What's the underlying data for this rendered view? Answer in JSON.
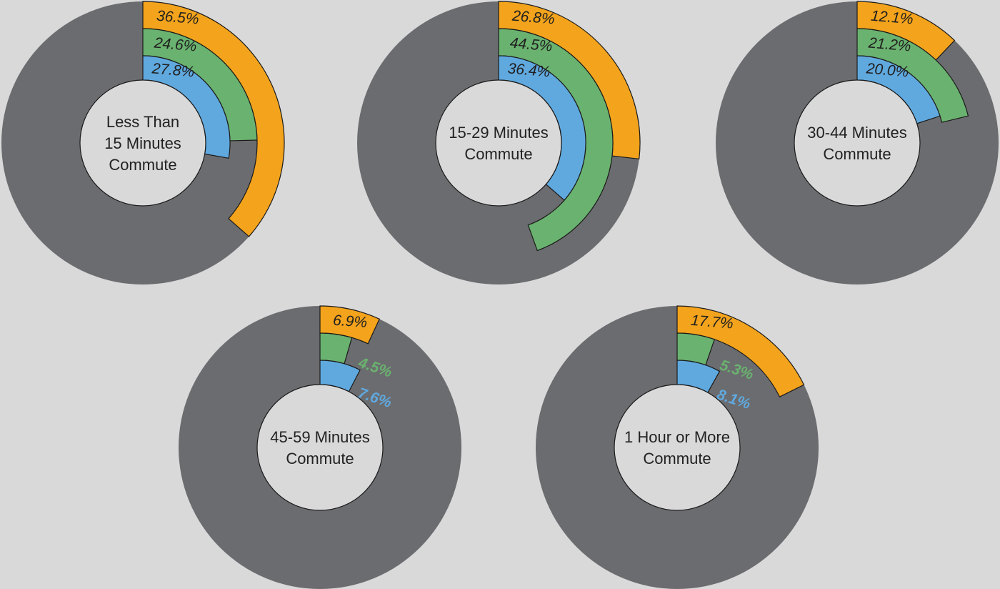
{
  "colors": {
    "background": "#d9d9d9",
    "ring_base": "#6b6c6f",
    "center_fill": "#d9d9d9",
    "series_orange": "#f3a31c",
    "series_green": "#6ab26f",
    "series_blue": "#60a9df",
    "outline": "#1a1a1a",
    "inside_label": "#1f1f1f"
  },
  "chart_data": [
    {
      "type": "radial-bar",
      "center_label": [
        "Less Than",
        "15 Minutes",
        "Commute"
      ],
      "series": [
        {
          "value": 36.5,
          "label": "36.5%",
          "color": "#f3a31c"
        },
        {
          "value": 24.6,
          "label": "24.6%",
          "color": "#6ab26f"
        },
        {
          "value": 27.8,
          "label": "27.8%",
          "color": "#60a9df"
        }
      ],
      "unit": "%",
      "max": 100
    },
    {
      "type": "radial-bar",
      "center_label": [
        "15-29 Minutes",
        "Commute"
      ],
      "series": [
        {
          "value": 26.8,
          "label": "26.8%",
          "color": "#f3a31c"
        },
        {
          "value": 44.5,
          "label": "44.5%",
          "color": "#6ab26f"
        },
        {
          "value": 36.4,
          "label": "36.4%",
          "color": "#60a9df"
        }
      ],
      "unit": "%",
      "max": 100
    },
    {
      "type": "radial-bar",
      "center_label": [
        "30-44 Minutes",
        "Commute"
      ],
      "series": [
        {
          "value": 12.1,
          "label": "12.1%",
          "color": "#f3a31c"
        },
        {
          "value": 21.2,
          "label": "21.2%",
          "color": "#6ab26f"
        },
        {
          "value": 20.0,
          "label": "20.0%",
          "color": "#60a9df"
        }
      ],
      "unit": "%",
      "max": 100
    },
    {
      "type": "radial-bar",
      "center_label": [
        "45-59 Minutes",
        "Commute"
      ],
      "series": [
        {
          "value": 6.9,
          "label": "6.9%",
          "color": "#f3a31c"
        },
        {
          "value": 4.5,
          "label": "4.5%",
          "color": "#6ab26f"
        },
        {
          "value": 7.6,
          "label": "7.6%",
          "color": "#60a9df"
        }
      ],
      "unit": "%",
      "max": 100
    },
    {
      "type": "radial-bar",
      "center_label": [
        "1 Hour or More",
        "Commute"
      ],
      "series": [
        {
          "value": 17.7,
          "label": "17.7%",
          "color": "#f3a31c"
        },
        {
          "value": 5.3,
          "label": "5.3%",
          "color": "#6ab26f"
        },
        {
          "value": 8.1,
          "label": "8.1%",
          "color": "#60a9df"
        }
      ],
      "unit": "%",
      "max": 100
    }
  ]
}
